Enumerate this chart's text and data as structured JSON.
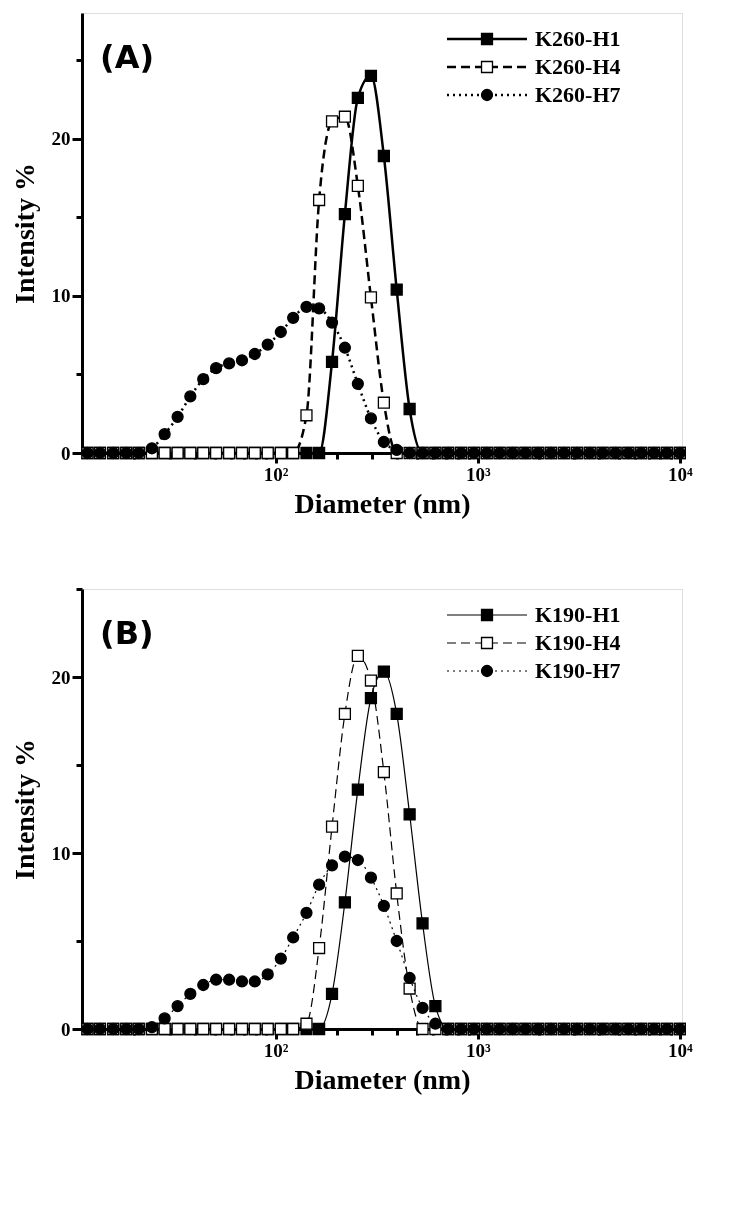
{
  "chart_data": [
    {
      "type": "line",
      "xlabel": "Diameter (nm)",
      "ylabel": "Intensity %",
      "annotations": [
        "(A)"
      ],
      "log": "x",
      "legend": "top right",
      "x": [
        11.7,
        13.5,
        15.7,
        18.2,
        21.0,
        24.4,
        28.2,
        32.7,
        37.8,
        43.8,
        50.7,
        58.8,
        68.1,
        78.8,
        91.3,
        106,
        122,
        142,
        164,
        190,
        220,
        255,
        296,
        343,
        397,
        460,
        533,
        617,
        714,
        827,
        957,
        1108,
        1283,
        1486,
        1721,
        1993,
        2307,
        2672,
        3094,
        3583,
        4148,
        4804,
        5562,
        6441,
        7458,
        8636,
        10000
      ],
      "xlim": [
        11,
        10250
      ],
      "xticks": [
        {
          "value": 20,
          "label": null
        },
        {
          "value": 30,
          "label": null
        },
        {
          "value": 40,
          "label": null
        },
        {
          "value": 50,
          "label": null
        },
        {
          "value": 60,
          "label": null
        },
        {
          "value": 70,
          "label": null
        },
        {
          "value": 80,
          "label": null
        },
        {
          "value": 90,
          "label": null
        },
        {
          "value": 100,
          "label": "10²"
        },
        {
          "value": 200,
          "label": null
        },
        {
          "value": 300,
          "label": null
        },
        {
          "value": 400,
          "label": null
        },
        {
          "value": 500,
          "label": null
        },
        {
          "value": 600,
          "label": null
        },
        {
          "value": 700,
          "label": null
        },
        {
          "value": 800,
          "label": null
        },
        {
          "value": 900,
          "label": null
        },
        {
          "value": 1000,
          "label": "10³"
        },
        {
          "value": 2000,
          "label": null
        },
        {
          "value": 3000,
          "label": null
        },
        {
          "value": 4000,
          "label": null
        },
        {
          "value": 5000,
          "label": null
        },
        {
          "value": 6000,
          "label": null
        },
        {
          "value": 7000,
          "label": null
        },
        {
          "value": 8000,
          "label": null
        },
        {
          "value": 9000,
          "label": null
        },
        {
          "value": 10000,
          "label": "10⁴"
        }
      ],
      "ylim": [
        0,
        28
      ],
      "yticks": [
        0,
        {
          "value": 5,
          "label": null
        },
        10,
        {
          "value": 15,
          "label": null
        },
        20,
        {
          "value": 25,
          "label": null
        }
      ],
      "series": [
        {
          "name": "K260-H1",
          "color": "#000000",
          "marker": "square",
          "line_style": "solid",
          "values": [
            0,
            0,
            0,
            0,
            0,
            0,
            0,
            0,
            0,
            0,
            0,
            0,
            0,
            0,
            0,
            0,
            0,
            0,
            0,
            5.8,
            15.2,
            22.6,
            24.0,
            18.9,
            10.4,
            2.8,
            0,
            0,
            0,
            0,
            0,
            0,
            0,
            0,
            0,
            0,
            0,
            0,
            0,
            0,
            0,
            0,
            0,
            0,
            0,
            0,
            0
          ]
        },
        {
          "name": "K260-H4",
          "color": "#000000",
          "marker": "square",
          "line_style": "dashed",
          "values": [
            0,
            0,
            0,
            0,
            0,
            0,
            0,
            0,
            0,
            0,
            0,
            0,
            0,
            0,
            0,
            0,
            0,
            2.4,
            16.1,
            21.1,
            21.4,
            17.0,
            9.9,
            3.2,
            0,
            0,
            0,
            0,
            0,
            0,
            0,
            0,
            0,
            0,
            0,
            0,
            0,
            0,
            0,
            0,
            0,
            0,
            0,
            0,
            0,
            0,
            0
          ]
        },
        {
          "name": "K260-H7",
          "color": "#000000",
          "marker": "circle",
          "line_style": "dotted",
          "values": [
            0,
            0,
            0,
            0,
            0,
            0.3,
            1.2,
            2.3,
            3.6,
            4.7,
            5.4,
            5.7,
            5.9,
            6.3,
            6.9,
            7.7,
            8.6,
            9.3,
            9.2,
            8.3,
            6.7,
            4.4,
            2.2,
            0.7,
            0.2,
            0,
            0,
            0,
            0,
            0,
            0,
            0,
            0,
            0,
            0,
            0,
            0,
            0,
            0,
            0,
            0,
            0,
            0,
            0,
            0,
            0,
            0
          ]
        }
      ]
    },
    {
      "type": "line",
      "xlabel": "Diameter (nm)",
      "ylabel": "Intensity %",
      "annotations": [
        "(B)"
      ],
      "log": "x",
      "legend": "top right",
      "x": [
        11.7,
        13.5,
        15.7,
        18.2,
        21.0,
        24.4,
        28.2,
        32.7,
        37.8,
        43.8,
        50.7,
        58.8,
        68.1,
        78.8,
        91.3,
        106,
        122,
        142,
        164,
        190,
        220,
        255,
        296,
        343,
        397,
        460,
        533,
        617,
        714,
        827,
        957,
        1108,
        1283,
        1486,
        1721,
        1993,
        2307,
        2672,
        3094,
        3583,
        4148,
        4804,
        5562,
        6441,
        7458,
        8636,
        10000
      ],
      "xlim": [
        11,
        10250
      ],
      "xticks": [
        {
          "value": 20,
          "label": null
        },
        {
          "value": 30,
          "label": null
        },
        {
          "value": 40,
          "label": null
        },
        {
          "value": 50,
          "label": null
        },
        {
          "value": 60,
          "label": null
        },
        {
          "value": 70,
          "label": null
        },
        {
          "value": 80,
          "label": null
        },
        {
          "value": 90,
          "label": null
        },
        {
          "value": 100,
          "label": "10²"
        },
        {
          "value": 200,
          "label": null
        },
        {
          "value": 300,
          "label": null
        },
        {
          "value": 400,
          "label": null
        },
        {
          "value": 500,
          "label": null
        },
        {
          "value": 600,
          "label": null
        },
        {
          "value": 700,
          "label": null
        },
        {
          "value": 800,
          "label": null
        },
        {
          "value": 900,
          "label": null
        },
        {
          "value": 1000,
          "label": "10³"
        },
        {
          "value": 2000,
          "label": null
        },
        {
          "value": 3000,
          "label": null
        },
        {
          "value": 4000,
          "label": null
        },
        {
          "value": 5000,
          "label": null
        },
        {
          "value": 6000,
          "label": null
        },
        {
          "value": 7000,
          "label": null
        },
        {
          "value": 8000,
          "label": null
        },
        {
          "value": 9000,
          "label": null
        },
        {
          "value": 10000,
          "label": "10⁴"
        }
      ],
      "ylim": [
        0,
        25
      ],
      "yticks": [
        0,
        {
          "value": 5,
          "label": null
        },
        10,
        {
          "value": 15,
          "label": null
        },
        20,
        {
          "value": 25,
          "label": null
        }
      ],
      "series": [
        {
          "name": "K190-H1",
          "color": "#000000",
          "marker": "square",
          "line_style": "solid",
          "values": [
            0,
            0,
            0,
            0,
            0,
            0,
            0,
            0,
            0,
            0,
            0,
            0,
            0,
            0,
            0,
            0,
            0,
            0,
            0,
            2.0,
            7.2,
            13.6,
            18.8,
            20.3,
            17.9,
            12.2,
            6.0,
            1.3,
            0,
            0,
            0,
            0,
            0,
            0,
            0,
            0,
            0,
            0,
            0,
            0,
            0,
            0,
            0,
            0,
            0,
            0,
            0
          ]
        },
        {
          "name": "K190-H4",
          "color": "#000000",
          "marker": "square",
          "line_style": "dashed",
          "values": [
            0,
            0,
            0,
            0,
            0,
            0,
            0,
            0,
            0,
            0,
            0,
            0,
            0,
            0,
            0,
            0,
            0,
            0.3,
            4.6,
            11.5,
            17.9,
            21.2,
            19.8,
            14.6,
            7.7,
            2.3,
            0,
            0,
            0,
            0,
            0,
            0,
            0,
            0,
            0,
            0,
            0,
            0,
            0,
            0,
            0,
            0,
            0,
            0,
            0,
            0,
            0
          ]
        },
        {
          "name": "K190-H7",
          "color": "#000000",
          "marker": "circle",
          "line_style": "dotted",
          "values": [
            0,
            0,
            0,
            0,
            0,
            0.1,
            0.6,
            1.3,
            2.0,
            2.5,
            2.8,
            2.8,
            2.7,
            2.7,
            3.1,
            4.0,
            5.2,
            6.6,
            8.2,
            9.3,
            9.8,
            9.6,
            8.6,
            7.0,
            5.0,
            2.9,
            1.2,
            0.3,
            0,
            0,
            0,
            0,
            0,
            0,
            0,
            0,
            0,
            0,
            0,
            0,
            0,
            0,
            0,
            0,
            0,
            0,
            0
          ]
        }
      ]
    }
  ]
}
